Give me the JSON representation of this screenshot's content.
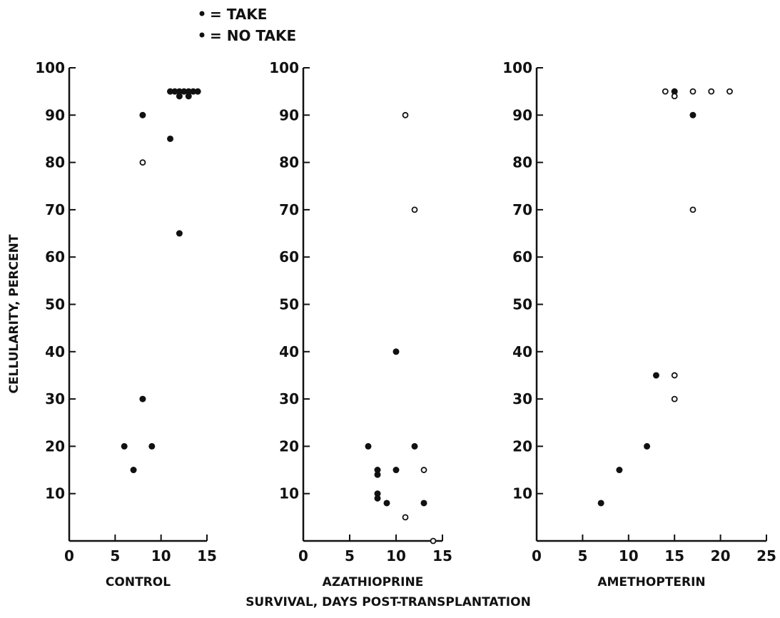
{
  "legend": {
    "take_label": "= TAKE",
    "no_take_label": "= NO TAKE",
    "take_symbol": "filled-dot",
    "no_take_symbol": "open-circle"
  },
  "colors": {
    "ink": "#111111",
    "background": "#ffffff"
  },
  "shared_axes": {
    "ylabel": "CELLULARITY, PERCENT",
    "xlabel": "SURVIVAL, DAYS POST-TRANSPLANTATION"
  },
  "chart_data": [
    {
      "type": "scatter",
      "panel_label": "CONTROL",
      "xlim": [
        0,
        15
      ],
      "ylim": [
        0,
        100
      ],
      "xticks": [
        0,
        5,
        10,
        15
      ],
      "yticks": [
        10,
        20,
        30,
        40,
        50,
        60,
        70,
        80,
        90,
        100
      ],
      "series": [
        {
          "name": "TAKE",
          "points": [
            {
              "x": 6,
              "y": 20
            },
            {
              "x": 7,
              "y": 15
            },
            {
              "x": 8,
              "y": 30
            },
            {
              "x": 8,
              "y": 90
            },
            {
              "x": 9,
              "y": 20
            },
            {
              "x": 11,
              "y": 85
            },
            {
              "x": 12,
              "y": 65
            },
            {
              "x": 11,
              "y": 95
            },
            {
              "x": 11.5,
              "y": 95
            },
            {
              "x": 12,
              "y": 95
            },
            {
              "x": 12.5,
              "y": 95
            },
            {
              "x": 13,
              "y": 95
            },
            {
              "x": 13.5,
              "y": 95
            },
            {
              "x": 14,
              "y": 95
            },
            {
              "x": 12,
              "y": 94
            },
            {
              "x": 13,
              "y": 94
            }
          ]
        },
        {
          "name": "NO TAKE",
          "points": [
            {
              "x": 8,
              "y": 80
            }
          ]
        }
      ]
    },
    {
      "type": "scatter",
      "panel_label": "AZATHIOPRINE",
      "xlim": [
        0,
        15
      ],
      "ylim": [
        0,
        100
      ],
      "xticks": [
        0,
        5,
        10,
        15
      ],
      "yticks": [
        10,
        20,
        30,
        40,
        50,
        60,
        70,
        80,
        90,
        100
      ],
      "series": [
        {
          "name": "TAKE",
          "points": [
            {
              "x": 7,
              "y": 20
            },
            {
              "x": 8,
              "y": 15
            },
            {
              "x": 8,
              "y": 14
            },
            {
              "x": 8,
              "y": 10
            },
            {
              "x": 8,
              "y": 9
            },
            {
              "x": 9,
              "y": 8
            },
            {
              "x": 10,
              "y": 40
            },
            {
              "x": 10,
              "y": 15
            },
            {
              "x": 12,
              "y": 20
            },
            {
              "x": 13,
              "y": 8
            }
          ]
        },
        {
          "name": "NO TAKE",
          "points": [
            {
              "x": 11,
              "y": 90
            },
            {
              "x": 12,
              "y": 70
            },
            {
              "x": 13,
              "y": 15
            },
            {
              "x": 11,
              "y": 5
            },
            {
              "x": 14,
              "y": 0
            }
          ]
        }
      ]
    },
    {
      "type": "scatter",
      "panel_label": "AMETHOPTERIN",
      "xlim": [
        0,
        25
      ],
      "ylim": [
        0,
        100
      ],
      "xticks": [
        0,
        5,
        10,
        15,
        20,
        25
      ],
      "yticks": [
        10,
        20,
        30,
        40,
        50,
        60,
        70,
        80,
        90,
        100
      ],
      "series": [
        {
          "name": "TAKE",
          "points": [
            {
              "x": 7,
              "y": 8
            },
            {
              "x": 9,
              "y": 15
            },
            {
              "x": 12,
              "y": 20
            },
            {
              "x": 13,
              "y": 35
            },
            {
              "x": 17,
              "y": 90
            },
            {
              "x": 15,
              "y": 95
            }
          ]
        },
        {
          "name": "NO TAKE",
          "points": [
            {
              "x": 14,
              "y": 95
            },
            {
              "x": 15,
              "y": 94
            },
            {
              "x": 15,
              "y": 35
            },
            {
              "x": 15,
              "y": 30
            },
            {
              "x": 17,
              "y": 95
            },
            {
              "x": 17,
              "y": 70
            },
            {
              "x": 19,
              "y": 95
            },
            {
              "x": 21,
              "y": 95
            }
          ]
        }
      ]
    }
  ]
}
